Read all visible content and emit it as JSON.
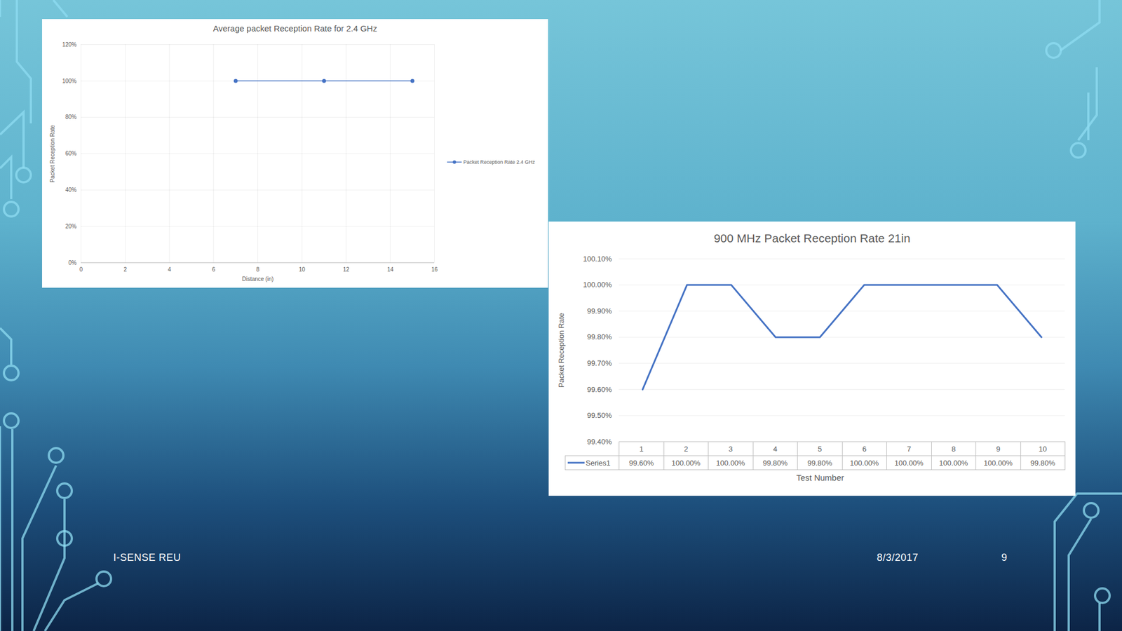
{
  "chart_data": [
    {
      "type": "line",
      "title": "Average packet Reception Rate for 2.4 GHz",
      "x_label": "Distance (in)",
      "y_label": "Packet Reception Rate",
      "x": [
        7,
        11,
        15
      ],
      "series": [
        {
          "name": "Packet Reception Rate 2.4 GHz",
          "color": "#4472c4",
          "marker": "circle",
          "values": [
            100,
            100,
            100
          ]
        }
      ],
      "xlim": [
        0,
        16
      ],
      "xticks": [
        0,
        2,
        4,
        6,
        8,
        10,
        12,
        14,
        16
      ],
      "ylim": [
        0,
        120
      ],
      "yticks": [
        {
          "value": 0,
          "label": "0%"
        },
        {
          "value": 20,
          "label": "20%"
        },
        {
          "value": 40,
          "label": "40%"
        },
        {
          "value": 60,
          "label": "60%"
        },
        {
          "value": 80,
          "label": "80%"
        },
        {
          "value": 100,
          "label": "100%"
        },
        {
          "value": 120,
          "label": "120%"
        }
      ],
      "grid": true,
      "legend": "right"
    },
    {
      "type": "line",
      "title": "900 MHz Packet Reception Rate 21in",
      "x_label": "Test Number",
      "y_label": "Packet Reception Rate",
      "categories": [
        "1",
        "2",
        "3",
        "4",
        "5",
        "6",
        "7",
        "8",
        "9",
        "10"
      ],
      "series": [
        {
          "name": "Series1",
          "color": "#4472c4",
          "values": [
            99.6,
            100,
            100,
            99.8,
            99.8,
            100,
            100,
            100,
            100,
            99.8
          ],
          "value_labels": [
            "99.60%",
            "100.00%",
            "100.00%",
            "99.80%",
            "99.80%",
            "100.00%",
            "100.00%",
            "100.00%",
            "100.00%",
            "99.80%"
          ]
        }
      ],
      "ylim": [
        99.4,
        100.1
      ],
      "yticks": [
        {
          "value": 99.4,
          "label": "99.40%"
        },
        {
          "value": 99.5,
          "label": "99.50%"
        },
        {
          "value": 99.6,
          "label": "99.60%"
        },
        {
          "value": 99.7,
          "label": "99.70%"
        },
        {
          "value": 99.8,
          "label": "99.80%"
        },
        {
          "value": 99.9,
          "label": "99.90%"
        },
        {
          "value": 100,
          "label": "100.00%"
        },
        {
          "value": 100.1,
          "label": "100.10%"
        }
      ],
      "grid": true
    }
  ],
  "footer": {
    "left": "I-SENSE REU",
    "date": "8/3/2017",
    "page": "9"
  }
}
